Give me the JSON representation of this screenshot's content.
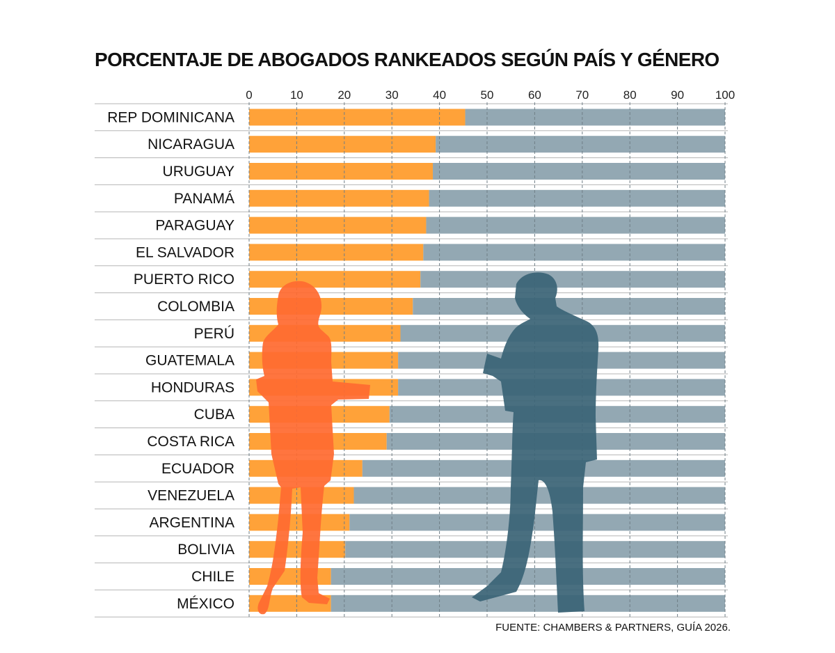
{
  "title": "PORCENTAJE DE ABOGADOS RANKEADOS SEGÚN PAÍS Y GÉNERO",
  "source": "FUENTE: CHAMBERS & PARTNERS, GUÍA 2026.",
  "colors": {
    "women": "#ffa239",
    "men": "#93a8b3",
    "woman_silhouette": "#ff6a30",
    "man_silhouette": "#3b6476",
    "grid": "#6f7e86",
    "row_rule": "#b5b5b5"
  },
  "chart_data": {
    "type": "bar",
    "orientation": "horizontal",
    "stacked": true,
    "xlim": [
      0,
      100
    ],
    "xticks": [
      "0",
      "10",
      "20",
      "30",
      "40",
      "50",
      "60",
      "70",
      "80",
      "90",
      "100"
    ],
    "grid": true,
    "categories": [
      "REP  DOMINICANA",
      "NICARAGUA",
      "URUGUAY",
      "PANAMÁ",
      "PARAGUAY",
      "EL SALVADOR",
      "PUERTO RICO",
      "COLOMBIA",
      "PERÚ",
      "GUATEMALA",
      "HONDURAS",
      "CUBA",
      "COSTA RICA",
      "ECUADOR",
      "VENEZUELA",
      "ARGENTINA",
      "BOLIVIA",
      "CHILE",
      "MÉXICO"
    ],
    "series": [
      {
        "values": [
          45.4,
          39.2,
          38.6,
          37.8,
          37.2,
          36.6,
          36.0,
          34.4,
          31.8,
          31.3,
          31.3,
          29.5,
          28.9,
          23.8,
          22.0,
          21.1,
          20.2,
          17.2,
          17.2
        ]
      },
      {
        "values": [
          54.6,
          60.8,
          61.4,
          62.2,
          62.8,
          63.4,
          64.0,
          65.6,
          68.2,
          68.7,
          68.7,
          70.5,
          71.1,
          76.2,
          78.0,
          78.9,
          79.8,
          82.8,
          82.8
        ]
      }
    ]
  }
}
